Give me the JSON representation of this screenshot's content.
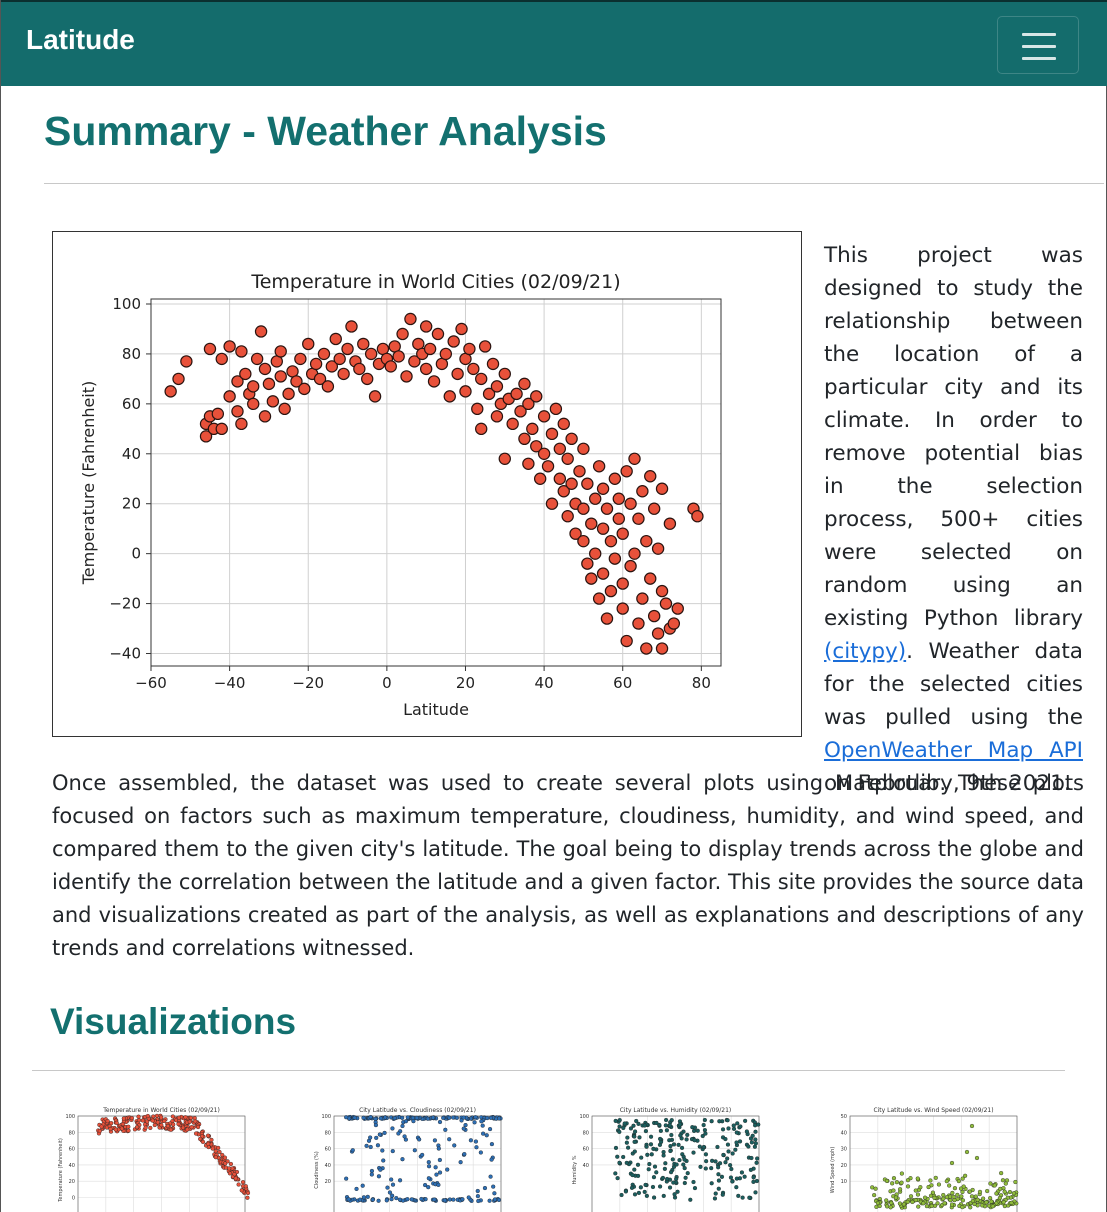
{
  "navbar": {
    "brand": "Latitude",
    "menu_icon": "hamburger-menu-icon"
  },
  "page_title": "Summary - Weather Analysis",
  "summary": {
    "intro_before_link": "This project was designed to study the relationship between the location of a particular city and its climate. In order to remove potential bias in the selection process, 500+ cities were selected on random using an existing Python library ",
    "citypy_link": "(citypy)",
    "intro_middle": ". Weather data for the selected cities was pulled using the ",
    "api_link": "OpenWeather Map API",
    "intro_end": " on February, 9th 2021.",
    "paragraph2": "Once assembled, the dataset was used to create several plots using Matplotlib. These plots focused on factors such as maximum temperature, cloudiness, humidity, and wind speed, and compared them to the given city's latitude. The goal being to display trends across the globe and identify the correlation between the latitude and a given factor. This site provides the source data and visualizations created as part of the analysis, as well as explanations and descriptions of any trends and correlations witnessed."
  },
  "visualizations_title": "Visualizations",
  "colors": {
    "navbar": "#146c6c",
    "heading": "#13706f",
    "link": "#1a6dd8",
    "temp_marker": "#e8513a",
    "cloud_marker": "#2d6fb5",
    "humidity_marker": "#1b5e5e",
    "wind_marker": "#8fbc3b"
  },
  "chart_data": [
    {
      "type": "scatter",
      "title": "Temperature in World Cities (02/09/21)",
      "xlabel": "Latitude",
      "ylabel": "Temperature (Fahrenheit)",
      "xlim": [
        -60,
        85
      ],
      "ylim": [
        -45,
        102
      ],
      "xticks": [
        -60,
        -40,
        -20,
        0,
        20,
        40,
        60,
        80
      ],
      "yticks": [
        100,
        80,
        60,
        40,
        20,
        0,
        -20,
        -40
      ],
      "grid": true,
      "marker_color": "#e8513a",
      "points": [
        [
          -55,
          65
        ],
        [
          -53,
          70
        ],
        [
          -51,
          77
        ],
        [
          -46,
          47
        ],
        [
          -46,
          52
        ],
        [
          -45,
          55
        ],
        [
          -45,
          82
        ],
        [
          -44,
          50
        ],
        [
          -43,
          56
        ],
        [
          -42,
          50
        ],
        [
          -42,
          78
        ],
        [
          -40,
          83
        ],
        [
          -40,
          63
        ],
        [
          -38,
          57
        ],
        [
          -38,
          69
        ],
        [
          -37,
          52
        ],
        [
          -37,
          81
        ],
        [
          -36,
          72
        ],
        [
          -35,
          64
        ],
        [
          -34,
          60
        ],
        [
          -34,
          67
        ],
        [
          -33,
          78
        ],
        [
          -32,
          89
        ],
        [
          -31,
          74
        ],
        [
          -31,
          55
        ],
        [
          -30,
          68
        ],
        [
          -29,
          61
        ],
        [
          -28,
          77
        ],
        [
          -27,
          71
        ],
        [
          -27,
          81
        ],
        [
          -26,
          58
        ],
        [
          -25,
          64
        ],
        [
          -24,
          73
        ],
        [
          -23,
          69
        ],
        [
          -22,
          78
        ],
        [
          -21,
          66
        ],
        [
          -20,
          84
        ],
        [
          -19,
          72
        ],
        [
          -18,
          76
        ],
        [
          -17,
          70
        ],
        [
          -16,
          80
        ],
        [
          -15,
          67
        ],
        [
          -14,
          75
        ],
        [
          -13,
          86
        ],
        [
          -12,
          78
        ],
        [
          -11,
          72
        ],
        [
          -10,
          82
        ],
        [
          -9,
          91
        ],
        [
          -8,
          77
        ],
        [
          -7,
          74
        ],
        [
          -6,
          84
        ],
        [
          -5,
          70
        ],
        [
          -4,
          80
        ],
        [
          -3,
          63
        ],
        [
          -2,
          76
        ],
        [
          -1,
          82
        ],
        [
          0,
          78
        ],
        [
          1,
          75
        ],
        [
          2,
          83
        ],
        [
          3,
          79
        ],
        [
          4,
          88
        ],
        [
          5,
          71
        ],
        [
          6,
          94
        ],
        [
          7,
          77
        ],
        [
          8,
          84
        ],
        [
          9,
          80
        ],
        [
          10,
          91
        ],
        [
          10,
          74
        ],
        [
          11,
          82
        ],
        [
          12,
          69
        ],
        [
          13,
          88
        ],
        [
          14,
          76
        ],
        [
          15,
          80
        ],
        [
          16,
          63
        ],
        [
          17,
          85
        ],
        [
          18,
          72
        ],
        [
          19,
          90
        ],
        [
          20,
          78
        ],
        [
          20,
          65
        ],
        [
          21,
          82
        ],
        [
          22,
          74
        ],
        [
          23,
          58
        ],
        [
          24,
          70
        ],
        [
          24,
          50
        ],
        [
          25,
          83
        ],
        [
          26,
          64
        ],
        [
          27,
          76
        ],
        [
          28,
          55
        ],
        [
          28,
          67
        ],
        [
          29,
          60
        ],
        [
          30,
          72
        ],
        [
          30,
          38
        ],
        [
          31,
          62
        ],
        [
          32,
          52
        ],
        [
          33,
          64
        ],
        [
          34,
          57
        ],
        [
          35,
          68
        ],
        [
          35,
          46
        ],
        [
          36,
          36
        ],
        [
          36,
          60
        ],
        [
          37,
          50
        ],
        [
          38,
          43
        ],
        [
          38,
          63
        ],
        [
          39,
          30
        ],
        [
          40,
          55
        ],
        [
          40,
          40
        ],
        [
          41,
          35
        ],
        [
          42,
          48
        ],
        [
          42,
          20
        ],
        [
          43,
          58
        ],
        [
          44,
          30
        ],
        [
          44,
          42
        ],
        [
          45,
          25
        ],
        [
          45,
          52
        ],
        [
          46,
          15
        ],
        [
          46,
          38
        ],
        [
          47,
          28
        ],
        [
          47,
          46
        ],
        [
          48,
          20
        ],
        [
          48,
          8
        ],
        [
          49,
          33
        ],
        [
          50,
          5
        ],
        [
          50,
          18
        ],
        [
          50,
          42
        ],
        [
          51,
          28
        ],
        [
          51,
          -4
        ],
        [
          52,
          12
        ],
        [
          52,
          -10
        ],
        [
          53,
          22
        ],
        [
          53,
          0
        ],
        [
          54,
          35
        ],
        [
          54,
          -18
        ],
        [
          55,
          10
        ],
        [
          55,
          -8
        ],
        [
          55,
          26
        ],
        [
          56,
          -26
        ],
        [
          56,
          18
        ],
        [
          57,
          5
        ],
        [
          57,
          -15
        ],
        [
          58,
          30
        ],
        [
          58,
          -2
        ],
        [
          59,
          14
        ],
        [
          59,
          22
        ],
        [
          60,
          -12
        ],
        [
          60,
          8
        ],
        [
          60,
          -22
        ],
        [
          61,
          33
        ],
        [
          61,
          -35
        ],
        [
          62,
          20
        ],
        [
          62,
          -5
        ],
        [
          63,
          38
        ],
        [
          63,
          0
        ],
        [
          64,
          -28
        ],
        [
          64,
          14
        ],
        [
          65,
          -18
        ],
        [
          65,
          25
        ],
        [
          66,
          -38
        ],
        [
          66,
          5
        ],
        [
          67,
          -10
        ],
        [
          67,
          31
        ],
        [
          68,
          -25
        ],
        [
          68,
          18
        ],
        [
          69,
          -32
        ],
        [
          69,
          2
        ],
        [
          70,
          -15
        ],
        [
          70,
          -38
        ],
        [
          70,
          26
        ],
        [
          71,
          -20
        ],
        [
          72,
          -30
        ],
        [
          72,
          12
        ],
        [
          73,
          -28
        ],
        [
          74,
          -22
        ],
        [
          78,
          18
        ],
        [
          79,
          15
        ]
      ]
    },
    {
      "type": "scatter",
      "title": "Temperature in World Cities (02/09/21)",
      "xlabel": "",
      "ylabel": "Temperature (Fahrenheit)",
      "yticks": [
        100,
        80,
        60,
        40,
        20,
        0,
        -20
      ],
      "marker_color": "#e8513a"
    },
    {
      "type": "scatter",
      "title": "City Latitude vs. Cloudiness (02/09/21)",
      "xlabel": "",
      "ylabel": "Cloudiness (%)",
      "yticks": [
        100,
        80,
        60,
        40,
        20
      ],
      "marker_color": "#2d6fb5"
    },
    {
      "type": "scatter",
      "title": "City Latitude vs. Humidity (02/09/21)",
      "xlabel": "",
      "ylabel": "Humidity %",
      "yticks": [
        100,
        80,
        60,
        40
      ],
      "marker_color": "#1b5e5e"
    },
    {
      "type": "scatter",
      "title": "City Latitude vs. Wind Speed (02/09/21)",
      "xlabel": "",
      "ylabel": "Wind Speed (mph)",
      "yticks": [
        50,
        40,
        30,
        20,
        10
      ],
      "marker_color": "#8fbc3b"
    }
  ]
}
